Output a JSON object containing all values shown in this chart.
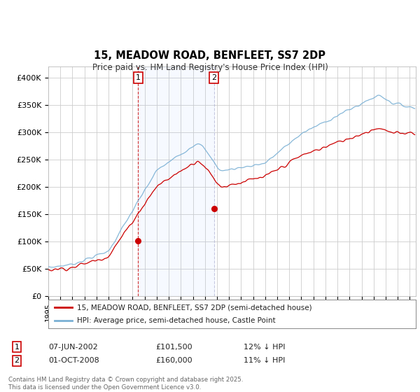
{
  "title": "15, MEADOW ROAD, BENFLEET, SS7 2DP",
  "subtitle": "Price paid vs. HM Land Registry's House Price Index (HPI)",
  "ylim": [
    0,
    420000
  ],
  "yticks": [
    0,
    50000,
    100000,
    150000,
    200000,
    250000,
    300000,
    350000,
    400000
  ],
  "ytick_labels": [
    "£0",
    "£50K",
    "£100K",
    "£150K",
    "£200K",
    "£250K",
    "£300K",
    "£350K",
    "£400K"
  ],
  "legend_line1": "15, MEADOW ROAD, BENFLEET, SS7 2DP (semi-detached house)",
  "legend_line2": "HPI: Average price, semi-detached house, Castle Point",
  "purchase1_date": "07-JUN-2002",
  "purchase1_price": "£101,500",
  "purchase1_note": "12% ↓ HPI",
  "purchase2_date": "01-OCT-2008",
  "purchase2_price": "£160,000",
  "purchase2_note": "11% ↓ HPI",
  "footer": "Contains HM Land Registry data © Crown copyright and database right 2025.\nThis data is licensed under the Open Government Licence v3.0.",
  "line_color_red": "#cc0000",
  "line_color_blue": "#7ab0d4",
  "background_color": "#ffffff",
  "plot_bg_color": "#ffffff",
  "grid_color": "#cccccc",
  "purchase1_year": 2002.45,
  "purchase1_val": 101500,
  "purchase2_year": 2008.75,
  "purchase2_val": 160000,
  "xlim_start": 1995,
  "xlim_end": 2025.5
}
